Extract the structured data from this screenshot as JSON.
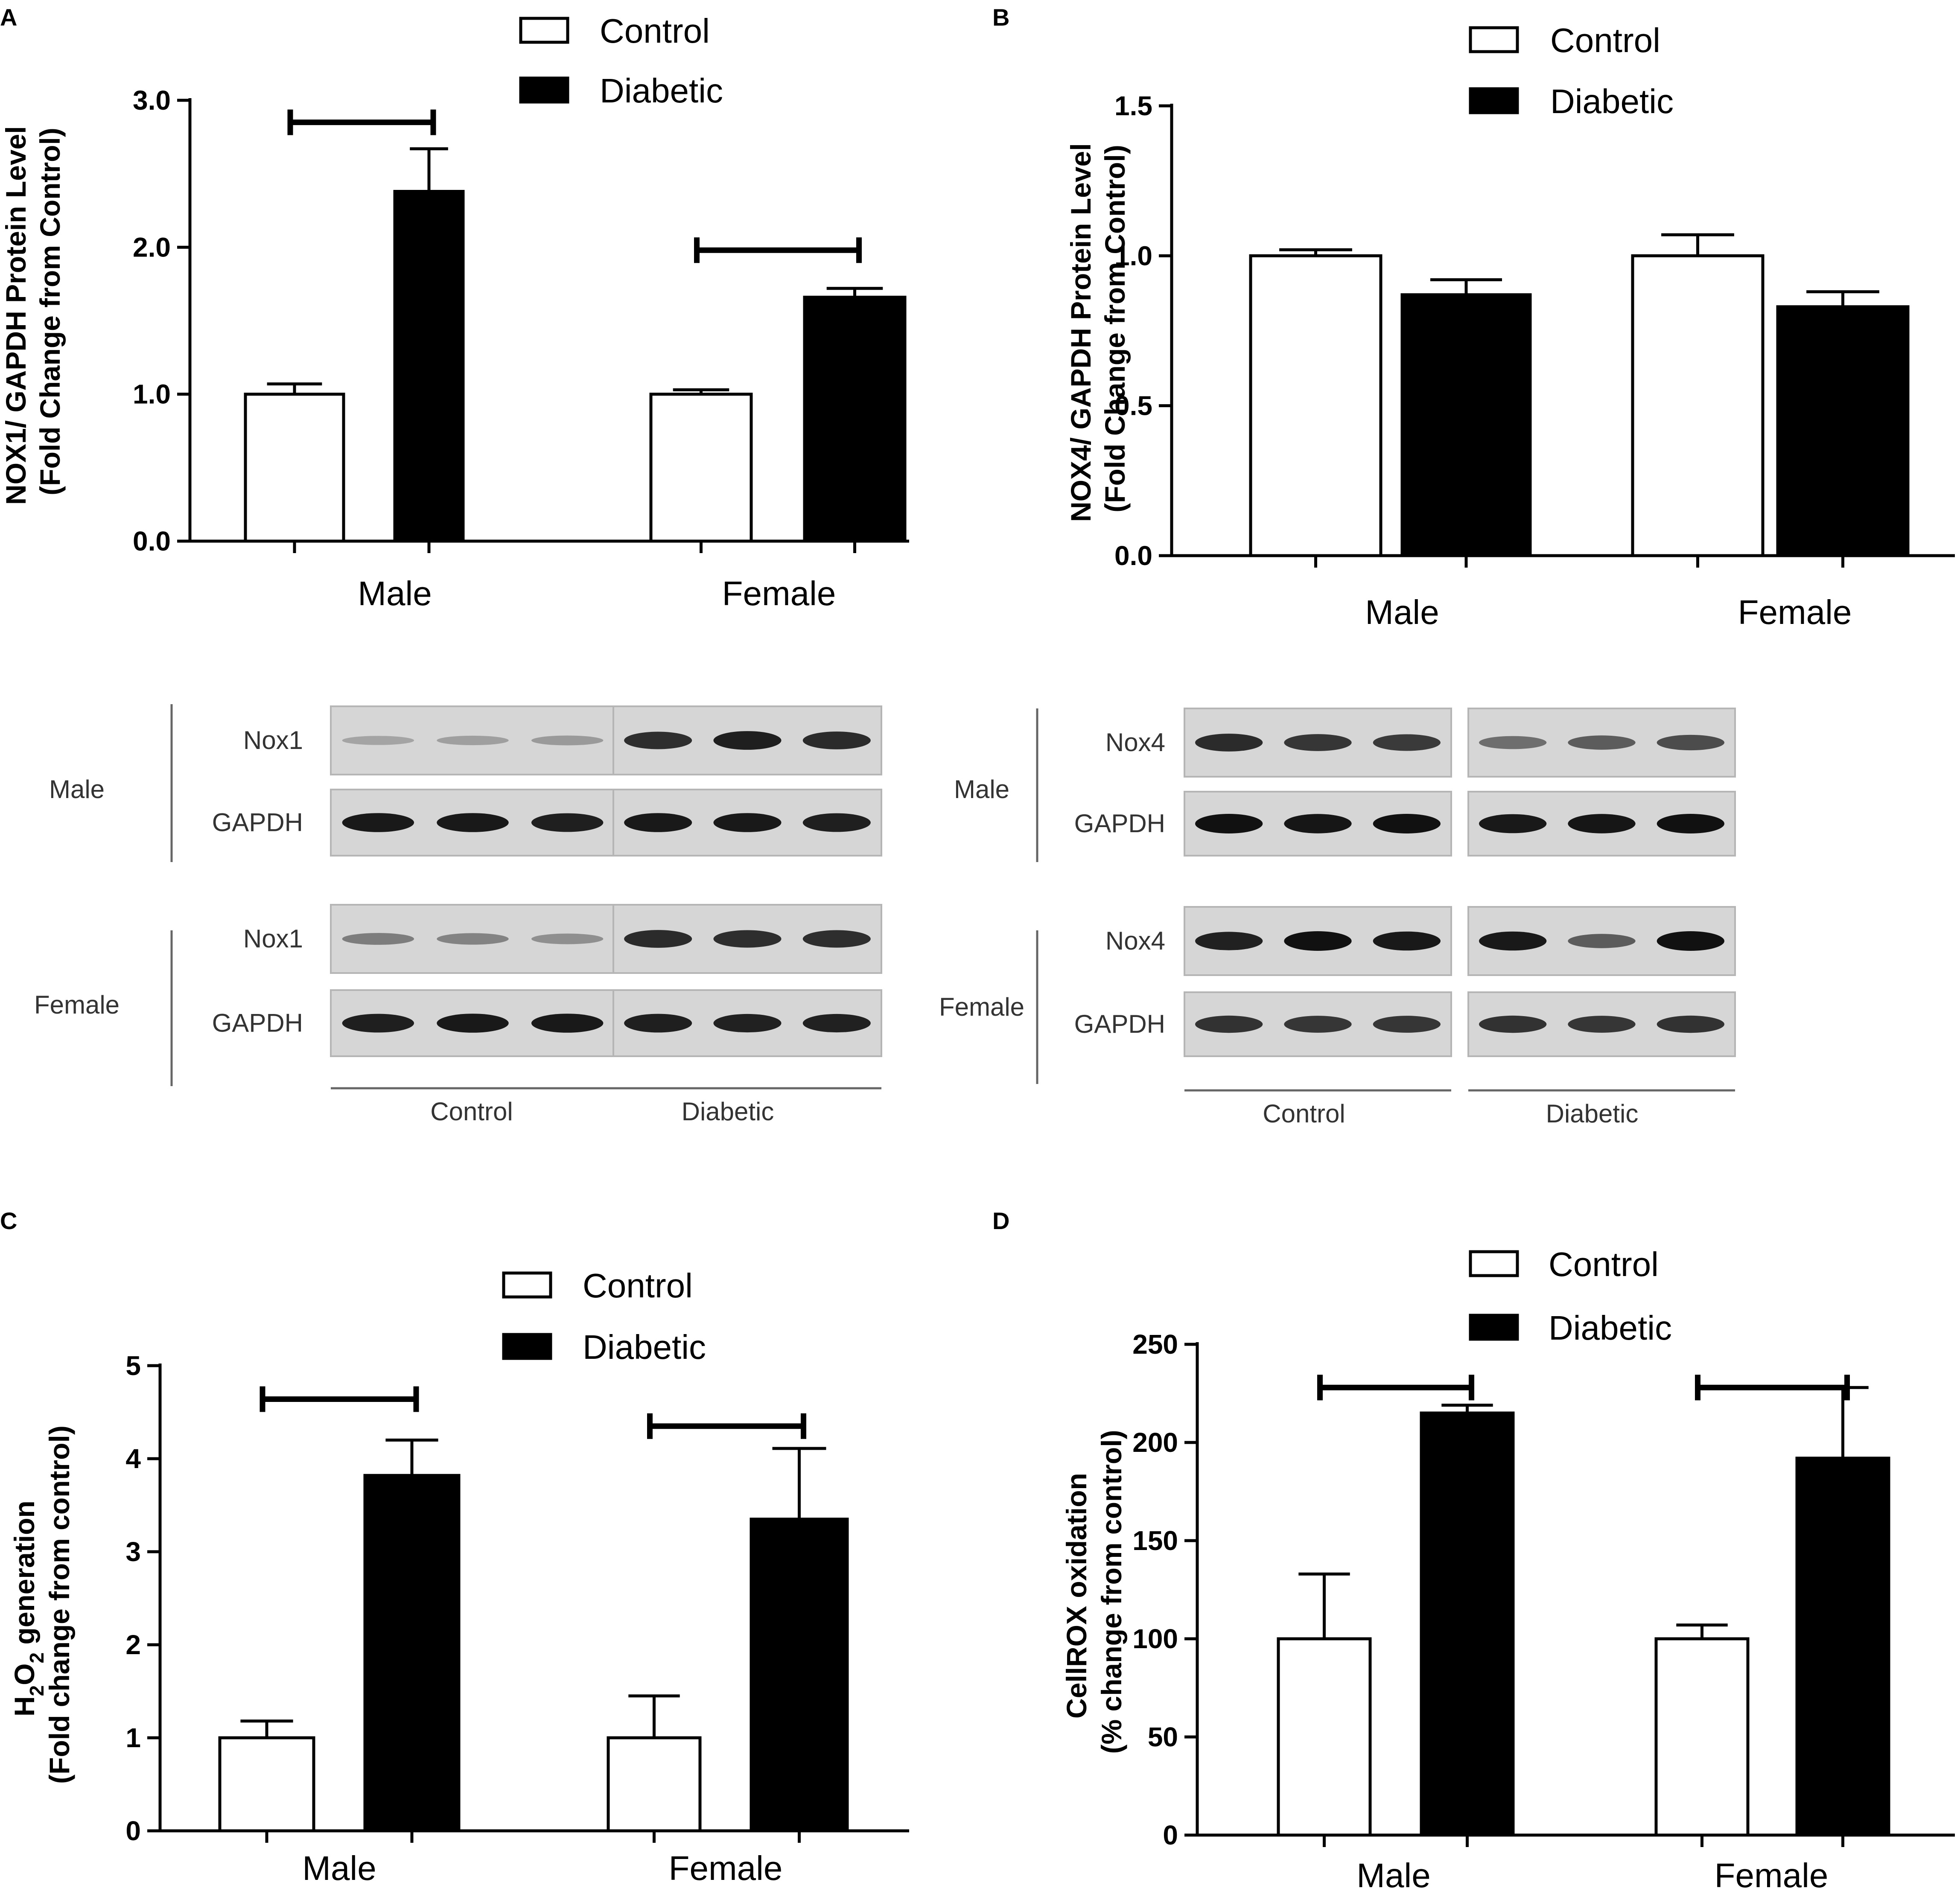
{
  "chart_data": [
    {
      "panel": "A",
      "type": "bar",
      "categories": [
        "Male",
        "Female"
      ],
      "series": [
        {
          "name": "Control",
          "values": [
            1.0,
            1.0
          ],
          "errors": [
            0.07,
            0.03
          ],
          "color": "#ffffff"
        },
        {
          "name": "Diabetic",
          "values": [
            2.38,
            1.66
          ],
          "errors": [
            0.29,
            0.06
          ],
          "color": "#000000"
        }
      ],
      "ylabel_lines": [
        "NOX1/ GAPDH Protein Level",
        "(Fold Change from Control)"
      ],
      "ylim": [
        0,
        3.0
      ],
      "yticks": [
        0.0,
        1.0,
        2.0,
        3.0
      ],
      "ytick_labels": [
        "0.0",
        "1.0",
        "2.0",
        "3.0"
      ],
      "legend": {
        "position": "top",
        "entries": [
          "Control",
          "Diabetic"
        ]
      },
      "significance": [
        {
          "category": "Male"
        },
        {
          "category": "Female"
        }
      ]
    },
    {
      "panel": "B",
      "type": "bar",
      "categories": [
        "Male",
        "Female"
      ],
      "series": [
        {
          "name": "Control",
          "values": [
            1.0,
            1.0
          ],
          "errors": [
            0.02,
            0.07
          ],
          "color": "#ffffff"
        },
        {
          "name": "Diabetic",
          "values": [
            0.87,
            0.83
          ],
          "errors": [
            0.05,
            0.05
          ],
          "color": "#000000"
        }
      ],
      "ylabel_lines": [
        "NOX4/ GAPDH Protein Level",
        "(Fold Change from Control)"
      ],
      "ylim": [
        0,
        1.5
      ],
      "yticks": [
        0.0,
        0.5,
        1.0,
        1.5
      ],
      "ytick_labels": [
        "0.0",
        "0.5",
        "1.0",
        "1.5"
      ],
      "legend": {
        "position": "top-right",
        "entries": [
          "Control",
          "Diabetic"
        ]
      },
      "significance": []
    },
    {
      "panel": "C",
      "type": "bar",
      "categories": [
        "Male",
        "Female"
      ],
      "series": [
        {
          "name": "Control",
          "values": [
            1.0,
            1.0
          ],
          "errors": [
            0.18,
            0.45
          ],
          "color": "#ffffff"
        },
        {
          "name": "Diabetic",
          "values": [
            3.82,
            3.35
          ],
          "errors": [
            0.38,
            0.76
          ],
          "color": "#000000"
        }
      ],
      "ylabel_main": "H",
      "ylabel_sub1": "2",
      "ylabel_mid": "O",
      "ylabel_sub2": "2",
      "ylabel_tail": " generation",
      "ylabel_line2": "(Fold change from control)",
      "ylim": [
        0,
        5
      ],
      "yticks": [
        0,
        1,
        2,
        3,
        4,
        5
      ],
      "ytick_labels": [
        "0",
        "1",
        "2",
        "3",
        "4",
        "5"
      ],
      "legend": {
        "position": "top",
        "entries": [
          "Control",
          "Diabetic"
        ]
      },
      "significance": [
        {
          "category": "Male"
        },
        {
          "category": "Female"
        }
      ]
    },
    {
      "panel": "D",
      "type": "bar",
      "categories": [
        "Male",
        "Female"
      ],
      "series": [
        {
          "name": "Control",
          "values": [
            100,
            100
          ],
          "errors": [
            33,
            7
          ],
          "color": "#ffffff"
        },
        {
          "name": "Diabetic",
          "values": [
            215,
            192
          ],
          "errors": [
            4,
            36
          ],
          "color": "#000000"
        }
      ],
      "ylabel_lines": [
        "CellROX oxidation",
        "(% change from control)"
      ],
      "ylim": [
        0,
        250
      ],
      "yticks": [
        0,
        50,
        100,
        150,
        200,
        250
      ],
      "ytick_labels": [
        "0",
        "50",
        "100",
        "150",
        "200",
        "250"
      ],
      "legend": {
        "position": "top-right",
        "entries": [
          "Control",
          "Diabetic"
        ]
      },
      "significance": [
        {
          "category": "Male"
        },
        {
          "category": "Female"
        }
      ]
    }
  ],
  "blots": [
    {
      "panel": "A",
      "groups": [
        {
          "sex": "Male",
          "rows": [
            {
              "protein": "Nox1",
              "control": [
                0.12,
                0.15,
                0.18
              ],
              "diabetic": [
                0.82,
                0.92,
                0.85
              ]
            },
            {
              "protein": "GAPDH",
              "control": [
                0.95,
                0.95,
                0.92
              ],
              "diabetic": [
                0.95,
                0.95,
                0.92
              ]
            }
          ]
        },
        {
          "sex": "Female",
          "rows": [
            {
              "protein": "Nox1",
              "control": [
                0.35,
                0.32,
                0.25
              ],
              "diabetic": [
                0.85,
                0.82,
                0.82
              ]
            },
            {
              "protein": "GAPDH",
              "control": [
                0.92,
                0.95,
                0.95
              ],
              "diabetic": [
                0.92,
                0.9,
                0.9
              ]
            }
          ]
        }
      ],
      "group_labels": [
        "Control",
        "Diabetic"
      ]
    },
    {
      "panel": "B",
      "groups": [
        {
          "sex": "Male",
          "rows": [
            {
              "protein": "Nox4",
              "control": [
                0.85,
                0.78,
                0.75
              ],
              "diabetic": [
                0.45,
                0.55,
                0.65
              ]
            },
            {
              "protein": "GAPDH",
              "control": [
                1.0,
                0.98,
                1.0
              ],
              "diabetic": [
                0.95,
                0.98,
                1.0
              ]
            }
          ]
        },
        {
          "sex": "Female",
          "rows": [
            {
              "protein": "Nox4",
              "control": [
                0.9,
                1.0,
                0.95
              ],
              "diabetic": [
                0.95,
                0.55,
                1.0
              ]
            },
            {
              "protein": "GAPDH",
              "control": [
                0.8,
                0.78,
                0.78
              ],
              "diabetic": [
                0.8,
                0.78,
                0.8
              ]
            }
          ]
        }
      ],
      "group_labels": [
        "Control",
        "Diabetic"
      ]
    }
  ]
}
